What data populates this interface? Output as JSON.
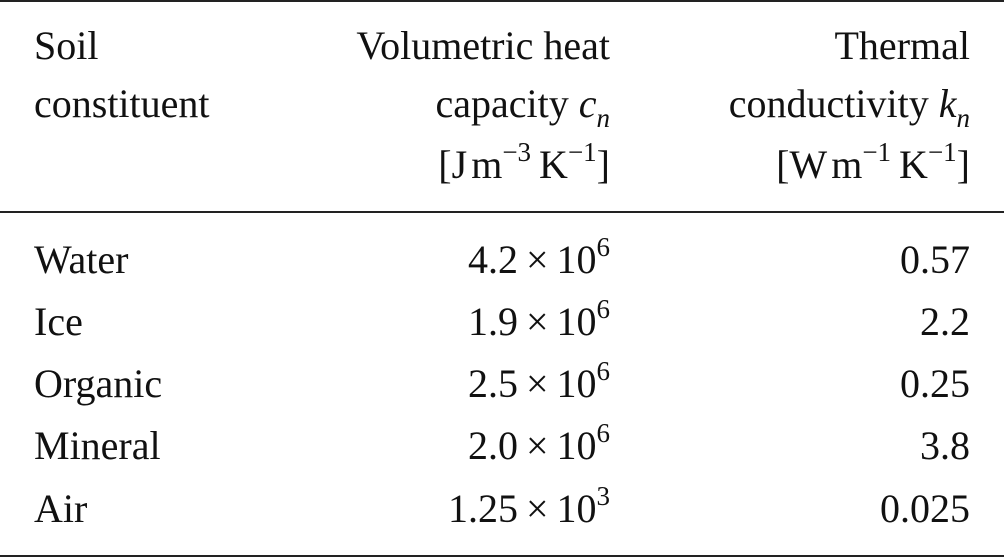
{
  "table": {
    "headers": {
      "col1": [
        "Soil",
        "constituent"
      ],
      "col2": {
        "line1": "Volumetric heat",
        "line2_text": "capacity ",
        "line2_var": "c",
        "line2_sub": "n",
        "unit_open": "[J",
        "unit_m": "m",
        "unit_m_exp": "−3",
        "unit_k": "K",
        "unit_k_exp": "−1",
        "unit_close": "]"
      },
      "col3": {
        "line1": "Thermal",
        "line2_text": "conductivity ",
        "line2_var": "k",
        "line2_sub": "n",
        "unit_open": "[W",
        "unit_m": "m",
        "unit_m_exp": "−1",
        "unit_k": "K",
        "unit_k_exp": "−1",
        "unit_close": "]"
      }
    },
    "rows": [
      {
        "constituent": "Water",
        "cn_mantissa": "4.2",
        "cn_times": "×",
        "cn_base": "10",
        "cn_exp": "6",
        "kn": "0.57"
      },
      {
        "constituent": "Ice",
        "cn_mantissa": "1.9",
        "cn_times": "×",
        "cn_base": "10",
        "cn_exp": "6",
        "kn": "2.2"
      },
      {
        "constituent": "Organic",
        "cn_mantissa": "2.5",
        "cn_times": "×",
        "cn_base": "10",
        "cn_exp": "6",
        "kn": "0.25"
      },
      {
        "constituent": "Mineral",
        "cn_mantissa": "2.0",
        "cn_times": "×",
        "cn_base": "10",
        "cn_exp": "6",
        "kn": "3.8"
      },
      {
        "constituent": "Air",
        "cn_mantissa": "1.25",
        "cn_times": "×",
        "cn_base": "10",
        "cn_exp": "3",
        "kn": "0.025"
      }
    ]
  }
}
